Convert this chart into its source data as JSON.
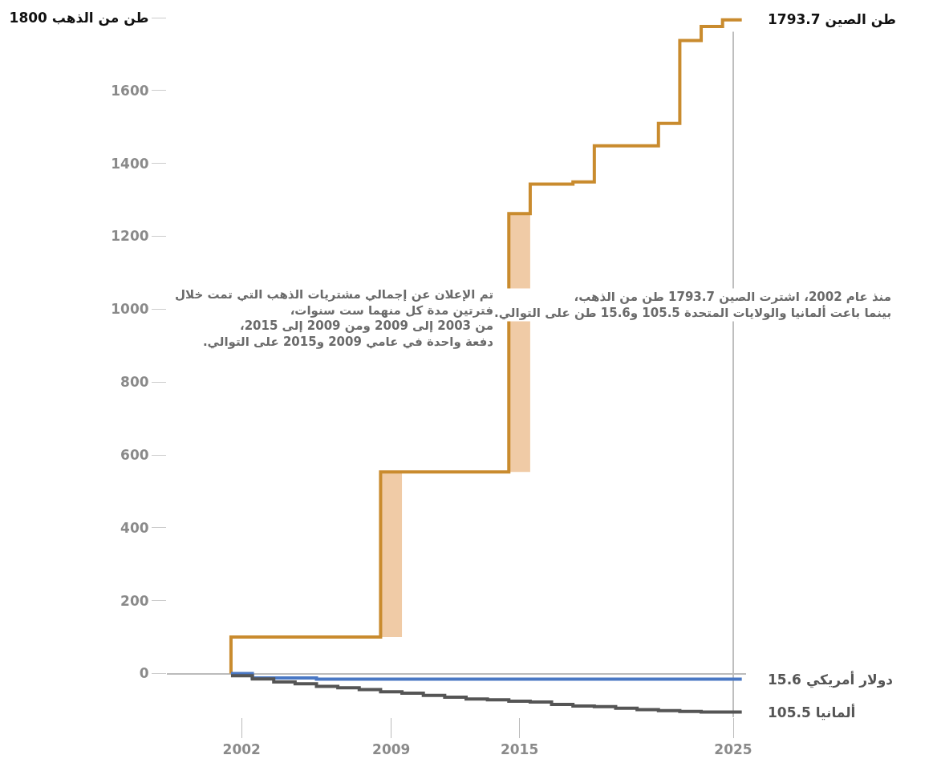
{
  "chart_data": {
    "type": "step",
    "series": [
      {
        "type": "bar",
        "color": "#f0cba6",
        "x": [
          2009,
          2015
        ],
        "base": [
          100,
          553
        ],
        "values": [
          453,
          709
        ]
      },
      {
        "color": "#c98b2e",
        "x": [
          2001.5,
          2001.5,
          2008.5,
          2014.5,
          2015.5,
          2017.5,
          2018.5,
          2021.5,
          2022.5,
          2023.5,
          2024.5,
          2025.4
        ],
        "values": [
          0,
          100,
          553,
          1262,
          1343,
          1349,
          1448,
          1510,
          1737,
          1776,
          1793.7,
          1793.7
        ]
      },
      {
        "color": "#4a78c4",
        "x": [
          2001.5,
          2002.5,
          2005.5,
          2025.4
        ],
        "values": [
          0,
          -12,
          -15.6,
          -15.6
        ]
      },
      {
        "color": "#555555",
        "x": [
          2001.5,
          2002.5,
          2003.5,
          2004.5,
          2005.5,
          2006.5,
          2007.5,
          2008.5,
          2009.5,
          2010.5,
          2011.5,
          2012.5,
          2013.5,
          2014.5,
          2015.5,
          2016.5,
          2017.5,
          2018.5,
          2019.5,
          2020.5,
          2021.5,
          2022.5,
          2023.5,
          2025.4
        ],
        "values": [
          -6,
          -15,
          -23,
          -28,
          -35,
          -39,
          -44,
          -50,
          -54,
          -60,
          -65,
          -70,
          -72,
          -76,
          -78,
          -85,
          -89,
          -91,
          -95,
          -99,
          -102,
          -104,
          -105.5,
          -105.5
        ]
      }
    ],
    "xlim": [
      1998.5,
      2025.6
    ],
    "xticks": [
      2002,
      2009,
      2015,
      2025
    ],
    "ylim": [
      -120,
      1800
    ],
    "yticks": [
      0,
      200,
      400,
      600,
      800,
      1000,
      1200,
      1400,
      1600,
      {
        "value": 1800,
        "label": "1800 طن من الذهب"
      }
    ],
    "ref_lines": [
      {
        "axis": "x",
        "value": 2025,
        "color": "#aaaaaa"
      }
    ],
    "annotations": [
      "تم الإعلان عن إجمالي مشتريات الذهب التي تمت خلال\nفترتين مدة كل منهما ست سنوات،\nمن 2003 إلى 2009 ومن 2009 إلى 2015،\nدفعة واحدة في عامي 2009 و2015 على التوالي.",
      "منذ عام 2002، اشترت الصين 1793.7 طن من الذهب،\nبينما باعت ألمانيا والولايات المتحدة 105.5 و15.6 طن على التوالي.",
      "1793.7 طن الصين",
      "15.6 دولار أمريكي",
      "105.5 ألمانيا"
    ],
    "legend": false
  }
}
